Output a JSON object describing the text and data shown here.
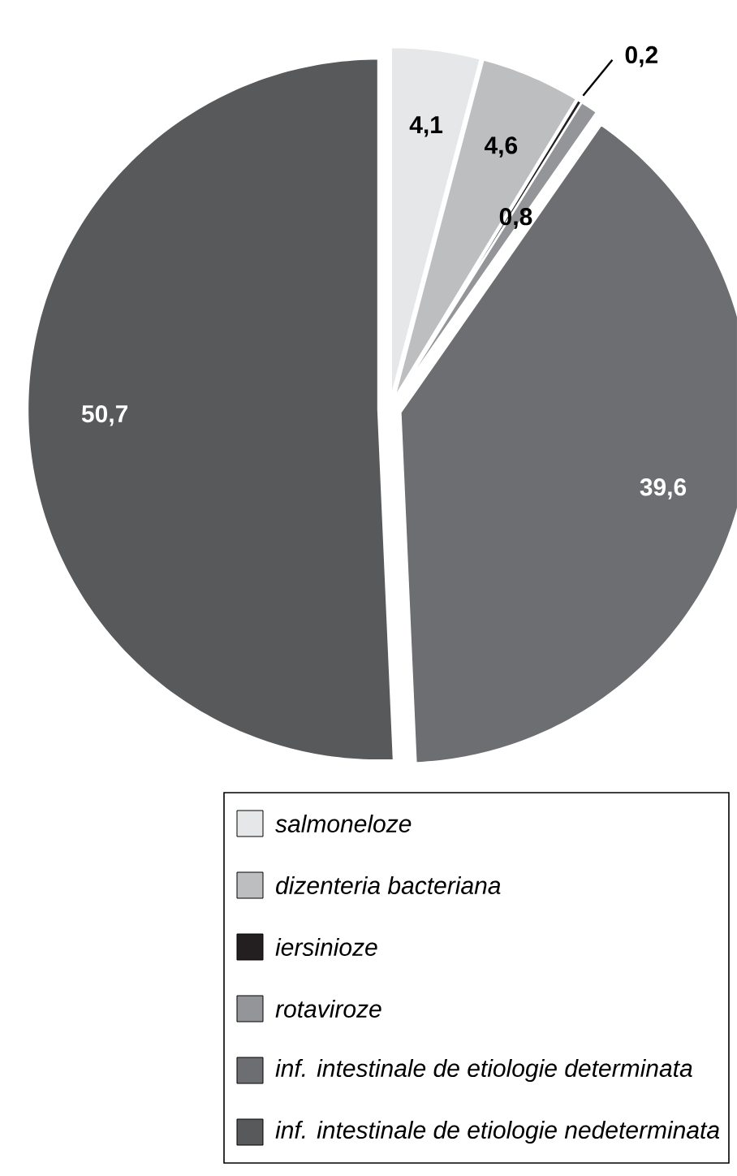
{
  "chart_data": {
    "type": "pie",
    "categories": [
      "salmoneloze",
      "dizenteria bacteriana",
      "iersinioze",
      "rotaviroze",
      "inf. intestinale de etiologie determinata",
      "inf. intestinale de etiologie nedeterminata"
    ],
    "values": [
      4.1,
      4.6,
      0.2,
      0.8,
      39.6,
      50.7
    ],
    "colors": [
      "#e6e7e8",
      "#bcbec0",
      "#231f20",
      "#939598",
      "#6d6e71",
      "#58595b"
    ],
    "value_labels": [
      "4,1",
      "4,6",
      "0,2",
      "0,8",
      "39,6",
      "50,7"
    ],
    "data_labels": true,
    "legend": "bottom"
  }
}
